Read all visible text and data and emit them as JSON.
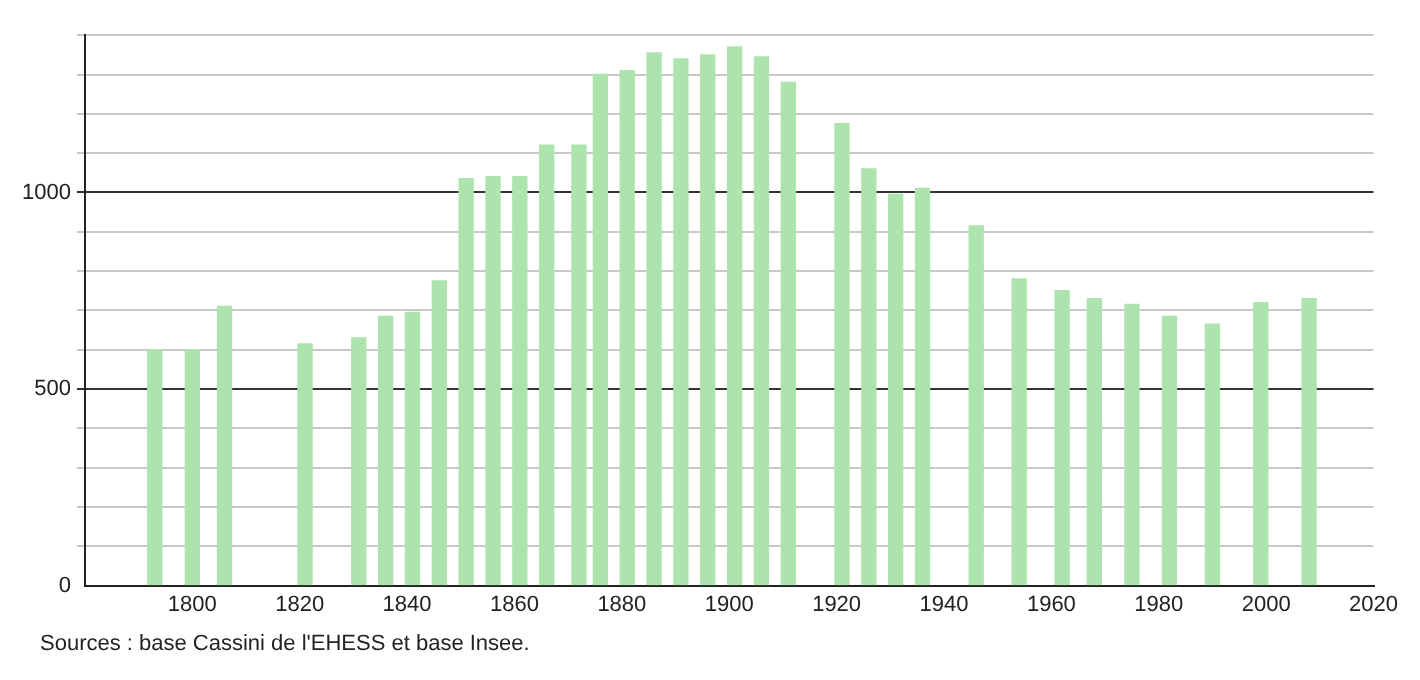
{
  "chart_data": {
    "type": "bar",
    "x": [
      1793,
      1800,
      1806,
      1821,
      1831,
      1836,
      1841,
      1846,
      1851,
      1856,
      1861,
      1866,
      1872,
      1876,
      1881,
      1886,
      1891,
      1896,
      1901,
      1906,
      1911,
      1921,
      1926,
      1931,
      1936,
      1946,
      1954,
      1962,
      1968,
      1975,
      1982,
      1990,
      1999,
      2008
    ],
    "values": [
      600,
      600,
      710,
      615,
      630,
      685,
      695,
      775,
      1035,
      1040,
      1040,
      1120,
      1120,
      1300,
      1310,
      1355,
      1340,
      1350,
      1370,
      1345,
      1280,
      1175,
      1060,
      995,
      1010,
      915,
      780,
      750,
      730,
      715,
      685,
      665,
      720,
      730
    ],
    "color": "#ade3ad",
    "xlim": [
      1780,
      2020
    ],
    "xticks": [
      1800,
      1820,
      1840,
      1860,
      1880,
      1900,
      1920,
      1940,
      1960,
      1980,
      2000,
      2020
    ],
    "ylim": [
      0,
      1400
    ],
    "yticks": [
      0,
      {
        "value": 100,
        "label": null
      },
      {
        "value": 200,
        "label": null
      },
      {
        "value": 300,
        "label": null
      },
      {
        "value": 400,
        "label": null
      },
      500,
      {
        "value": 600,
        "label": null
      },
      {
        "value": 700,
        "label": null
      },
      {
        "value": 800,
        "label": null
      },
      {
        "value": 900,
        "label": null
      },
      1000,
      {
        "value": 1100,
        "label": null
      },
      {
        "value": 1200,
        "label": null
      },
      {
        "value": 1300,
        "label": null
      },
      {
        "value": 1400,
        "label": null
      }
    ],
    "grid": "y",
    "annotations": [
      "Sources : base Cassini de l'EHESS et base Insee."
    ]
  }
}
